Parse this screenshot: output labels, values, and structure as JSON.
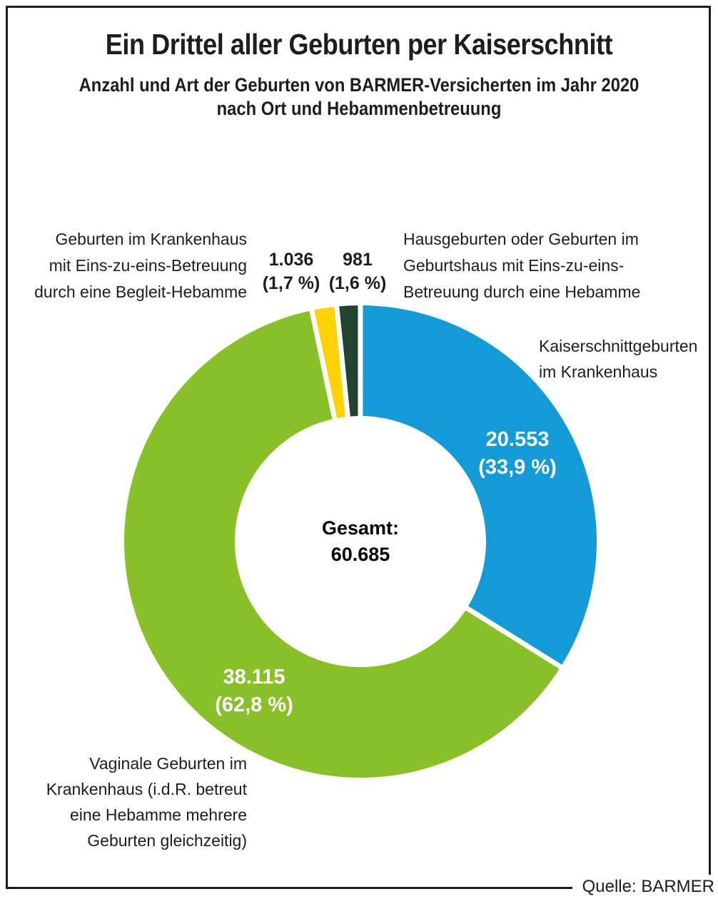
{
  "header": {
    "title": "Ein Drittel aller Geburten per Kaiserschnitt",
    "subtitle_line1": "Anzahl und Art der Geburten von BARMER-Versicherten im Jahr 2020",
    "subtitle_line2": "nach Ort und Hebammenbetreuung"
  },
  "center": {
    "label": "Gesamt:",
    "value": "60.685"
  },
  "source": "Quelle: BARMER",
  "colors": {
    "caesarean_blue": "#149bd7",
    "vaginal_green": "#89bf28",
    "one_to_one_yellow": "#ffd205",
    "homebirth_darkgreen": "#22432f",
    "divider_white": "#ffffff",
    "text_black": "#1d1d1b"
  },
  "chart_data": {
    "type": "pie",
    "subtype": "donut",
    "title": "Anzahl und Art der Geburten von BARMER-Versicherten im Jahr 2020 nach Ort und Hebammenbetreuung",
    "total": 60685,
    "total_label": "Gesamt: 60.685",
    "start_angle_deg": 0,
    "direction": "clockwise",
    "legend_position": "labels-around-chart",
    "segments": [
      {
        "name": "Kaiserschnittgeburten im Krankenhaus",
        "value": 20553,
        "percent": 33.9,
        "value_label": "20.553",
        "percent_label": "(33,9 %)",
        "color": "#149bd7"
      },
      {
        "name": "Vaginale Geburten im Krankenhaus (i.d.R. betreut eine Hebamme mehrere Geburten gleichzeitig)",
        "value": 38115,
        "percent": 62.8,
        "value_label": "38.115",
        "percent_label": "(62,8 %)",
        "color": "#89bf28"
      },
      {
        "name": "Geburten im Krankenhaus mit Eins-zu-eins-Betreuung durch eine Begleit-Hebamme",
        "value": 1036,
        "percent": 1.7,
        "value_label": "1.036",
        "percent_label": "(1,7 %)",
        "color": "#ffd205"
      },
      {
        "name": "Hausgeburten oder Geburten im Geburtshaus mit Eins-zu-eins-Betreuung durch eine Hebamme",
        "value": 981,
        "percent": 1.6,
        "value_label": "981",
        "percent_label": "(1,6 %)",
        "color": "#22432f"
      }
    ]
  },
  "labels": {
    "left_top": {
      "line1": "Geburten im Krankenhaus",
      "line2": "mit Eins-zu-eins-Betreuung",
      "line3": "durch eine Begleit-Hebamme"
    },
    "right_top": {
      "line1": "Hausgeburten oder Geburten im",
      "line2": "Geburtshaus mit Eins-zu-eins-",
      "line3": "Betreuung durch eine Hebamme"
    },
    "caesarean": {
      "line1": "Kaiserschnittgeburten",
      "line2": "im Krankenhaus"
    },
    "bottom_left": {
      "line1": "Vaginale Geburten im",
      "line2": "Krankenhaus (i.d.R. betreut",
      "line3": "eine Hebamme mehrere",
      "line4": "Geburten gleichzeitig)"
    }
  }
}
